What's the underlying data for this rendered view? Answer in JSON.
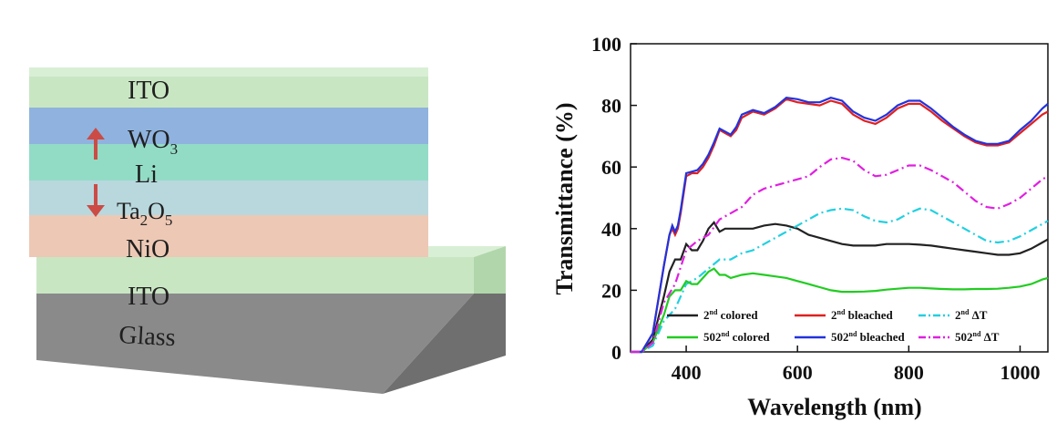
{
  "stack": {
    "layers": [
      {
        "id": "ito-top",
        "label": "ITO",
        "color": "#c9e6c3"
      },
      {
        "id": "wo3",
        "label": "WO",
        "sub": "3",
        "color": "#8fb3de"
      },
      {
        "id": "li",
        "label": "Li",
        "color": "#92dcc6"
      },
      {
        "id": "ta2o5",
        "label": "Ta",
        "sub1": "2",
        "mid": "O",
        "sub2": "5",
        "color": "#b8d8de"
      },
      {
        "id": "nio",
        "label": "NiO",
        "color": "#edc8b4"
      },
      {
        "id": "ito-bottom",
        "label": "ITO",
        "color": "#c9e6c3"
      },
      {
        "id": "glass",
        "label": "Glass",
        "color": "#8a8a8a"
      }
    ],
    "arrow_color": "#cc4b45"
  },
  "chart_data": {
    "type": "line",
    "xlabel": "Wavelength (nm)",
    "ylabel": "Transmittance (%)",
    "xlim": [
      300,
      1050
    ],
    "ylim": [
      0,
      100
    ],
    "xticks": [
      400,
      600,
      800,
      1000
    ],
    "yticks": [
      0,
      20,
      40,
      60,
      80,
      100
    ],
    "grid": false,
    "legend_position": "bottom",
    "series": [
      {
        "name": "2nd colored",
        "base": "2",
        "suffix": "nd",
        "rest": " colored",
        "color": "#222222",
        "dash": "solid",
        "x": [
          300,
          320,
          340,
          360,
          370,
          380,
          390,
          400,
          410,
          420,
          430,
          440,
          450,
          460,
          470,
          480,
          500,
          520,
          540,
          560,
          580,
          600,
          620,
          640,
          660,
          680,
          700,
          720,
          740,
          760,
          780,
          800,
          820,
          840,
          860,
          880,
          900,
          920,
          940,
          960,
          980,
          1000,
          1020,
          1040,
          1050
        ],
        "y": [
          0,
          0,
          4,
          18,
          26,
          30,
          30,
          35,
          33,
          33,
          36,
          40,
          42,
          39,
          40,
          40,
          40,
          40,
          41,
          41.5,
          41,
          40,
          38,
          37,
          36,
          35,
          34.5,
          34.5,
          34.5,
          35,
          35,
          35,
          34.8,
          34.5,
          34,
          33.5,
          33,
          32.5,
          32,
          31.5,
          31.5,
          32,
          33.5,
          35.5,
          36.5
        ]
      },
      {
        "name": "2nd bleached",
        "base": "2",
        "suffix": "nd",
        "rest": " bleached",
        "color": "#e02020",
        "dash": "solid",
        "x": [
          300,
          320,
          340,
          360,
          370,
          375,
          380,
          385,
          390,
          400,
          410,
          420,
          430,
          440,
          450,
          460,
          470,
          480,
          490,
          500,
          520,
          540,
          560,
          580,
          600,
          620,
          640,
          660,
          680,
          700,
          720,
          740,
          760,
          780,
          800,
          820,
          840,
          860,
          880,
          900,
          920,
          940,
          960,
          980,
          1000,
          1020,
          1040,
          1050
        ],
        "y": [
          0,
          0,
          6,
          28,
          38,
          40,
          38,
          40,
          45,
          57,
          58,
          58,
          60,
          63,
          67,
          72,
          71,
          70,
          72,
          76,
          78,
          77,
          79,
          82,
          81,
          80.5,
          80,
          81.5,
          80.5,
          77,
          75,
          74,
          76,
          79,
          80.5,
          80.5,
          78,
          75,
          72.5,
          70,
          68,
          67,
          67,
          68,
          71,
          74,
          77,
          78
        ]
      },
      {
        "name": "2nd ΔT",
        "base": "2",
        "suffix": "nd",
        "rest": " ΔT",
        "color": "#22d0e0",
        "dash": "dashdot",
        "x": [
          300,
          320,
          340,
          360,
          380,
          400,
          420,
          440,
          460,
          480,
          500,
          520,
          540,
          560,
          580,
          600,
          620,
          640,
          660,
          680,
          700,
          720,
          740,
          760,
          780,
          800,
          820,
          840,
          860,
          880,
          900,
          920,
          940,
          960,
          980,
          1000,
          1020,
          1040,
          1050
        ],
        "y": [
          0,
          0,
          2,
          10,
          14,
          22,
          24,
          27,
          30,
          30,
          32,
          33,
          35,
          37,
          39,
          41,
          43,
          45,
          46,
          46.5,
          46,
          44,
          42.5,
          42,
          43,
          45,
          46.5,
          46,
          44,
          42,
          40,
          38,
          36,
          35.5,
          36,
          37.5,
          39.5,
          41.5,
          42.5
        ]
      },
      {
        "name": "502nd colored",
        "base": "502",
        "suffix": "nd",
        "rest": " colored",
        "color": "#22cc22",
        "dash": "solid",
        "x": [
          300,
          320,
          340,
          360,
          370,
          380,
          390,
          400,
          410,
          420,
          430,
          440,
          450,
          460,
          470,
          480,
          500,
          520,
          540,
          560,
          580,
          600,
          620,
          640,
          660,
          680,
          700,
          720,
          740,
          760,
          780,
          800,
          820,
          840,
          860,
          880,
          900,
          920,
          940,
          960,
          980,
          1000,
          1020,
          1040,
          1050
        ],
        "y": [
          0,
          0,
          3,
          12,
          18,
          20,
          20,
          23,
          22,
          22,
          24,
          26,
          27,
          25,
          25,
          24,
          25,
          25.5,
          25,
          24.5,
          24,
          23,
          22,
          21,
          20,
          19.5,
          19.5,
          19.6,
          19.8,
          20.2,
          20.5,
          20.8,
          20.8,
          20.6,
          20.4,
          20.3,
          20.3,
          20.4,
          20.4,
          20.5,
          20.8,
          21.2,
          22,
          23.5,
          24
        ]
      },
      {
        "name": "502nd bleached",
        "base": "502",
        "suffix": "nd",
        "rest": " bleached",
        "color": "#2233dd",
        "dash": "solid",
        "x": [
          300,
          320,
          340,
          360,
          370,
          375,
          380,
          385,
          390,
          400,
          410,
          420,
          430,
          440,
          450,
          460,
          470,
          480,
          490,
          500,
          520,
          540,
          560,
          580,
          600,
          620,
          640,
          660,
          680,
          700,
          720,
          740,
          760,
          780,
          800,
          820,
          840,
          860,
          880,
          900,
          920,
          940,
          960,
          980,
          1000,
          1020,
          1040,
          1050
        ],
        "y": [
          0,
          0,
          6,
          28,
          38,
          41,
          39,
          41,
          46,
          58,
          58.5,
          59,
          61,
          64,
          68,
          72.5,
          71.5,
          70.5,
          73,
          77,
          78.5,
          77.5,
          79.5,
          82.5,
          82,
          81,
          81,
          82.5,
          81.5,
          78,
          76,
          75,
          77,
          80,
          81.5,
          81.5,
          79,
          76,
          73,
          70.5,
          68.5,
          67.5,
          67.5,
          68.5,
          72,
          75,
          79,
          80.5
        ]
      },
      {
        "name": "502nd ΔT",
        "base": "502",
        "suffix": "nd",
        "rest": " ΔT",
        "color": "#e020e0",
        "dash": "dashdot",
        "x": [
          300,
          320,
          340,
          360,
          380,
          400,
          420,
          440,
          460,
          480,
          500,
          520,
          540,
          560,
          580,
          600,
          620,
          640,
          660,
          680,
          700,
          720,
          740,
          760,
          780,
          800,
          820,
          840,
          860,
          880,
          900,
          920,
          940,
          960,
          980,
          1000,
          1020,
          1040,
          1050
        ],
        "y": [
          0,
          0,
          3,
          16,
          22,
          33,
          36,
          38,
          43,
          45,
          47,
          51,
          53,
          54,
          55,
          56,
          57,
          60,
          62.5,
          63,
          62,
          59,
          57,
          57.5,
          59,
          60.5,
          60.5,
          59,
          57,
          55,
          52,
          49,
          47,
          46.5,
          48,
          50,
          53,
          56,
          57
        ]
      }
    ]
  }
}
